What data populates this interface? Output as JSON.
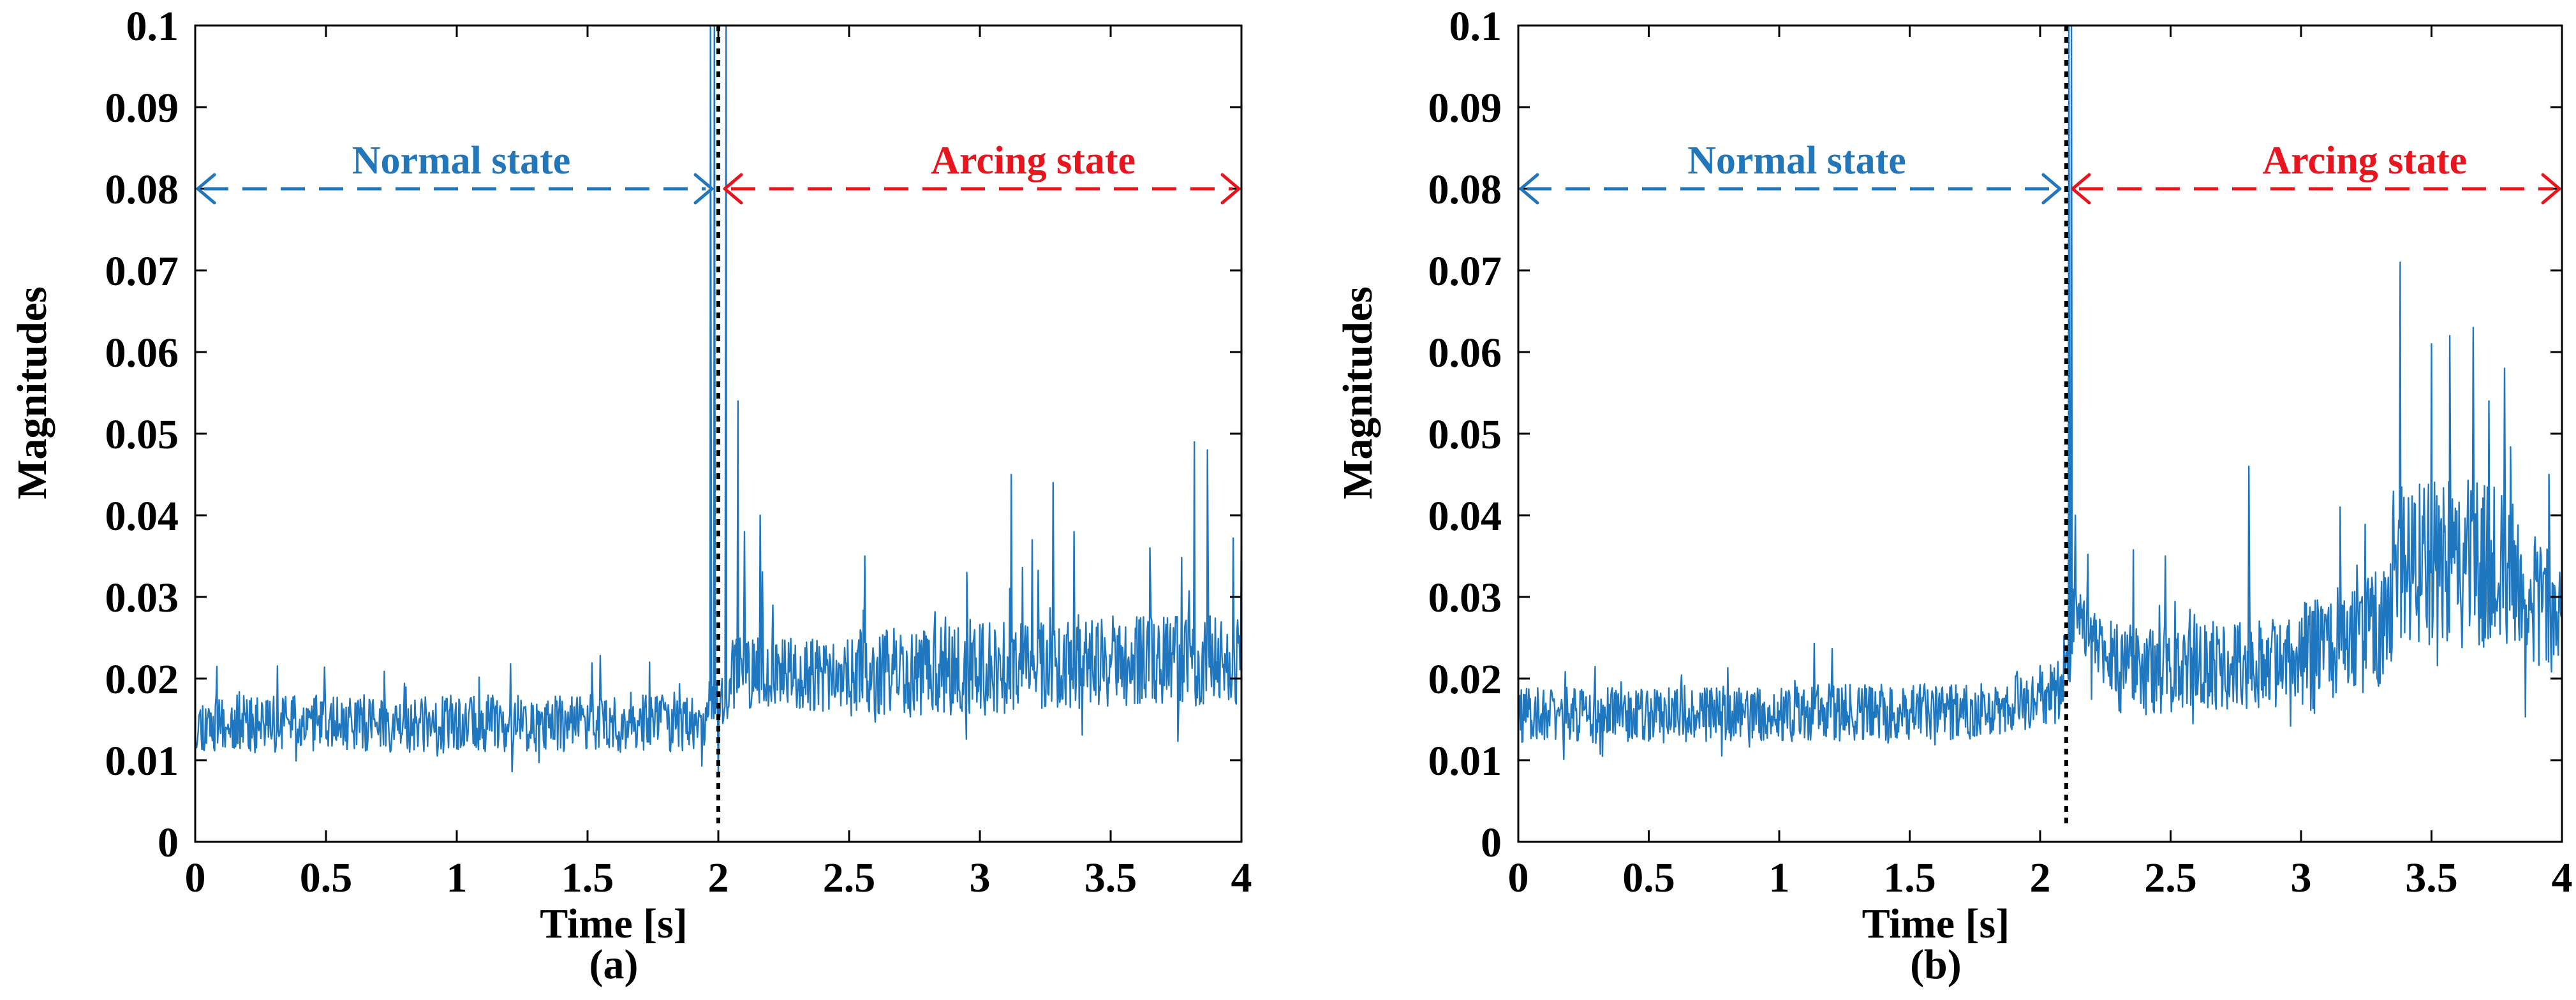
{
  "colors": {
    "series": "#1f77c0",
    "normal": "#2277bb",
    "arcing": "#e8141e",
    "divider": "#000000"
  },
  "chart_data": [
    {
      "type": "line",
      "panel_label": "(a)",
      "xlabel": "Time [s]",
      "ylabel": "Magnitudes",
      "xlim": [
        0,
        4
      ],
      "ylim": [
        0,
        0.1
      ],
      "x_ticks": [
        0,
        0.5,
        1,
        1.5,
        2,
        2.5,
        3,
        3.5,
        4
      ],
      "x_tick_labels": [
        "0",
        "0.5",
        "1",
        "1.5",
        "2",
        "2.5",
        "3",
        "3.5",
        "4"
      ],
      "y_ticks": [
        0,
        0.01,
        0.02,
        0.03,
        0.04,
        0.05,
        0.06,
        0.07,
        0.08,
        0.09,
        0.1
      ],
      "y_tick_labels": [
        "0",
        "0.01",
        "0.02",
        "0.03",
        "0.04",
        "0.05",
        "0.06",
        "0.07",
        "0.08",
        "0.09",
        "0.1"
      ],
      "grid": false,
      "transition_time": 2.0,
      "annotations": [
        {
          "text": "Normal state",
          "x_start": 0,
          "x_end": 2.0,
          "y": 0.08,
          "color_key": "normal"
        },
        {
          "text": "Arcing state",
          "x_start": 2.0,
          "x_end": 4,
          "y": 0.08,
          "color_key": "arcing"
        }
      ],
      "series": [
        {
          "name": "Magnitudes",
          "x_range": [
            0,
            4
          ],
          "segments": [
            {
              "x_start": 0.0,
              "x_end": 1.95,
              "level_start": 0.0145,
              "level_end": 0.0145,
              "noise": 0.0022
            },
            {
              "x_start": 2.05,
              "x_end": 2.5,
              "level_start": 0.0205,
              "level_end": 0.0205,
              "noise": 0.0028
            },
            {
              "x_start": 2.5,
              "x_end": 4.0,
              "level_start": 0.0205,
              "level_end": 0.0225,
              "noise": 0.0035
            }
          ],
          "peaks": [
            {
              "x": 1.97,
              "y": 0.1
            },
            {
              "x": 1.985,
              "y": 0.1
            },
            {
              "x": 2.0,
              "y": 0.008
            },
            {
              "x": 2.03,
              "y": 0.1
            },
            {
              "x": 2.075,
              "y": 0.054
            },
            {
              "x": 2.1,
              "y": 0.038
            },
            {
              "x": 2.16,
              "y": 0.04
            },
            {
              "x": 2.56,
              "y": 0.035
            },
            {
              "x": 2.95,
              "y": 0.033
            },
            {
              "x": 3.12,
              "y": 0.045
            },
            {
              "x": 3.2,
              "y": 0.037
            },
            {
              "x": 3.28,
              "y": 0.044
            },
            {
              "x": 3.36,
              "y": 0.038
            },
            {
              "x": 3.65,
              "y": 0.036
            },
            {
              "x": 3.82,
              "y": 0.049
            },
            {
              "x": 3.87,
              "y": 0.048
            },
            {
              "x": 4.0,
              "y": 0.04
            }
          ]
        }
      ]
    },
    {
      "type": "line",
      "panel_label": "(b)",
      "xlabel": "Time [s]",
      "ylabel": "Magnitudes",
      "xlim": [
        0,
        4
      ],
      "ylim": [
        0,
        0.1
      ],
      "x_ticks": [
        0,
        0.5,
        1,
        1.5,
        2,
        2.5,
        3,
        3.5,
        4
      ],
      "x_tick_labels": [
        "0",
        "0.5",
        "1",
        "1.5",
        "2",
        "2.5",
        "3",
        "3.5",
        "4"
      ],
      "y_ticks": [
        0,
        0.01,
        0.02,
        0.03,
        0.04,
        0.05,
        0.06,
        0.07,
        0.08,
        0.09,
        0.1
      ],
      "y_tick_labels": [
        "0",
        "0.01",
        "0.02",
        "0.03",
        "0.04",
        "0.05",
        "0.06",
        "0.07",
        "0.08",
        "0.09",
        "0.1"
      ],
      "grid": false,
      "transition_time": 2.1,
      "annotations": [
        {
          "text": "Normal state",
          "x_start": 0,
          "x_end": 2.1,
          "y": 0.08,
          "color_key": "normal"
        },
        {
          "text": "Arcing state",
          "x_start": 2.1,
          "x_end": 4,
          "y": 0.08,
          "color_key": "arcing"
        }
      ],
      "series": [
        {
          "name": "Magnitudes",
          "x_range": [
            0,
            4
          ],
          "segments": [
            {
              "x_start": 0.0,
              "x_end": 1.9,
              "level_start": 0.0155,
              "level_end": 0.016,
              "noise": 0.0022
            },
            {
              "x_start": 1.9,
              "x_end": 2.09,
              "level_start": 0.017,
              "level_end": 0.0185,
              "noise": 0.0025
            },
            {
              "x_start": 2.12,
              "x_end": 2.3,
              "level_start": 0.0265,
              "level_end": 0.022,
              "noise": 0.003
            },
            {
              "x_start": 2.3,
              "x_end": 3.0,
              "level_start": 0.021,
              "level_end": 0.022,
              "noise": 0.0035
            },
            {
              "x_start": 3.0,
              "x_end": 3.35,
              "level_start": 0.022,
              "level_end": 0.027,
              "noise": 0.0045
            },
            {
              "x_start": 3.35,
              "x_end": 3.85,
              "level_start": 0.034,
              "level_end": 0.034,
              "noise": 0.0065
            },
            {
              "x_start": 3.85,
              "x_end": 4.0,
              "level_start": 0.03,
              "level_end": 0.028,
              "noise": 0.005
            }
          ],
          "peaks": [
            {
              "x": 2.11,
              "y": 0.1
            },
            {
              "x": 2.12,
              "y": 0.1
            },
            {
              "x": 2.135,
              "y": 0.04
            },
            {
              "x": 2.48,
              "y": 0.035
            },
            {
              "x": 2.8,
              "y": 0.046
            },
            {
              "x": 3.15,
              "y": 0.041
            },
            {
              "x": 3.38,
              "y": 0.071
            },
            {
              "x": 3.5,
              "y": 0.061
            },
            {
              "x": 3.57,
              "y": 0.062
            },
            {
              "x": 3.66,
              "y": 0.063
            },
            {
              "x": 3.72,
              "y": 0.054
            },
            {
              "x": 3.78,
              "y": 0.058
            },
            {
              "x": 3.95,
              "y": 0.045
            }
          ]
        }
      ]
    }
  ]
}
